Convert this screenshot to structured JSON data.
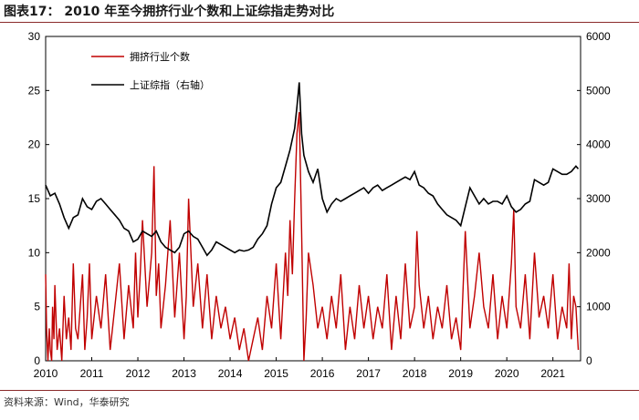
{
  "title": "图表17： 2010 年至今拥挤行业个数和上证综指走势对比",
  "source": "资料来源：Wind，华泰研究",
  "colors": {
    "crowded": "#c00000",
    "index": "#000000",
    "rule": "#8a2a2a"
  },
  "chart_data": {
    "type": "line",
    "x_ticks": [
      "2010",
      "2011",
      "2012",
      "2013",
      "2014",
      "2015",
      "2016",
      "2017",
      "2018",
      "2019",
      "2020",
      "2021"
    ],
    "x_range": [
      2010.0,
      2021.6
    ],
    "y_left": {
      "ticks": [
        "0",
        "5",
        "10",
        "15",
        "20",
        "25",
        "30"
      ],
      "range": [
        0,
        30
      ]
    },
    "y_right": {
      "ticks": [
        "0",
        "1000",
        "2000",
        "3000",
        "4000",
        "5000",
        "6000"
      ],
      "range": [
        0,
        6000
      ]
    },
    "legend_position": "top-left",
    "grid": false,
    "series": [
      {
        "name": "拥挤行业个数",
        "axis": "left",
        "x": [
          2010.0,
          2010.02,
          2010.05,
          2010.08,
          2010.1,
          2010.13,
          2010.15,
          2010.18,
          2010.2,
          2010.25,
          2010.3,
          2010.35,
          2010.4,
          2010.45,
          2010.5,
          2010.55,
          2010.6,
          2010.65,
          2010.7,
          2010.75,
          2010.8,
          2010.85,
          2010.9,
          2010.95,
          2011.0,
          2011.1,
          2011.2,
          2011.3,
          2011.4,
          2011.5,
          2011.6,
          2011.7,
          2011.8,
          2011.9,
          2011.95,
          2012.0,
          2012.05,
          2012.1,
          2012.2,
          2012.3,
          2012.35,
          2012.4,
          2012.45,
          2012.5,
          2012.6,
          2012.7,
          2012.8,
          2012.9,
          2013.0,
          2013.05,
          2013.1,
          2013.2,
          2013.3,
          2013.4,
          2013.5,
          2013.6,
          2013.7,
          2013.8,
          2013.9,
          2014.0,
          2014.1,
          2014.2,
          2014.3,
          2014.4,
          2014.5,
          2014.6,
          2014.7,
          2014.8,
          2014.9,
          2015.0,
          2015.1,
          2015.2,
          2015.25,
          2015.3,
          2015.35,
          2015.4,
          2015.45,
          2015.5,
          2015.55,
          2015.6,
          2015.65,
          2015.7,
          2015.8,
          2015.9,
          2016.0,
          2016.1,
          2016.2,
          2016.3,
          2016.4,
          2016.5,
          2016.6,
          2016.7,
          2016.8,
          2016.9,
          2017.0,
          2017.1,
          2017.2,
          2017.3,
          2017.4,
          2017.5,
          2017.6,
          2017.7,
          2017.8,
          2017.9,
          2018.0,
          2018.05,
          2018.1,
          2018.2,
          2018.3,
          2018.4,
          2018.5,
          2018.6,
          2018.7,
          2018.8,
          2018.9,
          2019.0,
          2019.1,
          2019.2,
          2019.3,
          2019.4,
          2019.5,
          2019.6,
          2019.7,
          2019.8,
          2019.9,
          2020.0,
          2020.1,
          2020.15,
          2020.2,
          2020.3,
          2020.4,
          2020.5,
          2020.6,
          2020.7,
          2020.8,
          2020.9,
          2021.0,
          2021.1,
          2021.2,
          2021.3,
          2021.35,
          2021.4,
          2021.45,
          2021.5,
          2021.55
        ],
        "values": [
          8,
          3,
          0,
          3,
          1,
          0,
          5,
          2,
          7,
          1,
          3,
          0,
          6,
          2,
          4,
          1,
          9,
          3,
          2,
          5,
          8,
          1,
          4,
          9,
          2,
          6,
          3,
          8,
          1,
          5,
          9,
          2,
          7,
          3,
          10,
          4,
          8,
          13,
          5,
          10,
          18,
          6,
          9,
          3,
          7,
          13,
          4,
          10,
          2,
          6,
          15,
          5,
          9,
          3,
          8,
          2,
          6,
          3,
          5,
          2,
          4,
          1,
          3,
          0,
          2,
          4,
          1,
          6,
          3,
          9,
          2,
          10,
          6,
          13,
          8,
          15,
          21,
          23,
          12,
          0,
          4,
          10,
          7,
          3,
          5,
          2,
          6,
          3,
          8,
          1,
          5,
          2,
          7,
          3,
          6,
          2,
          5,
          3,
          8,
          1,
          6,
          2,
          9,
          3,
          5,
          12,
          7,
          3,
          6,
          2,
          5,
          3,
          7,
          2,
          4,
          1,
          12,
          3,
          6,
          10,
          5,
          3,
          8,
          2,
          6,
          3,
          9,
          14,
          5,
          3,
          8,
          2,
          10,
          4,
          6,
          3,
          8,
          2,
          5,
          3,
          9,
          2,
          6,
          5,
          1
        ]
      },
      {
        "name": "上证综指（右轴）",
        "axis": "right",
        "x": [
          2010.0,
          2010.1,
          2010.2,
          2010.3,
          2010.4,
          2010.5,
          2010.6,
          2010.7,
          2010.8,
          2010.9,
          2011.0,
          2011.1,
          2011.2,
          2011.3,
          2011.4,
          2011.5,
          2011.6,
          2011.7,
          2011.8,
          2011.9,
          2012.0,
          2012.1,
          2012.2,
          2012.3,
          2012.4,
          2012.5,
          2012.6,
          2012.7,
          2012.8,
          2012.9,
          2013.0,
          2013.1,
          2013.2,
          2013.3,
          2013.4,
          2013.5,
          2013.6,
          2013.7,
          2013.8,
          2013.9,
          2014.0,
          2014.1,
          2014.2,
          2014.3,
          2014.4,
          2014.5,
          2014.6,
          2014.7,
          2014.8,
          2014.9,
          2015.0,
          2015.1,
          2015.2,
          2015.3,
          2015.4,
          2015.45,
          2015.5,
          2015.55,
          2015.6,
          2015.7,
          2015.8,
          2015.9,
          2016.0,
          2016.1,
          2016.2,
          2016.3,
          2016.4,
          2016.5,
          2016.6,
          2016.7,
          2016.8,
          2016.9,
          2017.0,
          2017.1,
          2017.2,
          2017.3,
          2017.4,
          2017.5,
          2017.6,
          2017.7,
          2017.8,
          2017.9,
          2018.0,
          2018.1,
          2018.2,
          2018.3,
          2018.4,
          2018.5,
          2018.6,
          2018.7,
          2018.8,
          2018.9,
          2019.0,
          2019.1,
          2019.2,
          2019.3,
          2019.4,
          2019.5,
          2019.6,
          2019.7,
          2019.8,
          2019.9,
          2020.0,
          2020.1,
          2020.2,
          2020.3,
          2020.4,
          2020.5,
          2020.6,
          2020.7,
          2020.8,
          2020.9,
          2021.0,
          2021.1,
          2021.2,
          2021.3,
          2021.4,
          2021.5,
          2021.55
        ],
        "values": [
          3250,
          3050,
          3100,
          2900,
          2650,
          2450,
          2650,
          2700,
          3000,
          2850,
          2800,
          2950,
          3000,
          2900,
          2800,
          2700,
          2600,
          2450,
          2400,
          2200,
          2250,
          2400,
          2350,
          2300,
          2400,
          2200,
          2100,
          2050,
          2000,
          2100,
          2350,
          2400,
          2300,
          2250,
          2100,
          1950,
          2050,
          2200,
          2150,
          2100,
          2050,
          2000,
          2050,
          2030,
          2050,
          2100,
          2250,
          2350,
          2500,
          2900,
          3200,
          3300,
          3600,
          3900,
          4300,
          4700,
          5150,
          4200,
          3800,
          3500,
          3300,
          3550,
          3000,
          2750,
          2900,
          3000,
          2950,
          3000,
          3050,
          3100,
          3150,
          3200,
          3100,
          3200,
          3250,
          3150,
          3200,
          3250,
          3300,
          3350,
          3400,
          3350,
          3500,
          3250,
          3200,
          3100,
          3050,
          2900,
          2800,
          2700,
          2650,
          2600,
          2500,
          2850,
          3200,
          3050,
          2900,
          3000,
          2900,
          2950,
          2950,
          2900,
          3050,
          2850,
          2750,
          2800,
          2900,
          2950,
          3350,
          3300,
          3250,
          3300,
          3550,
          3500,
          3450,
          3450,
          3500,
          3600,
          3550
        ]
      }
    ]
  }
}
